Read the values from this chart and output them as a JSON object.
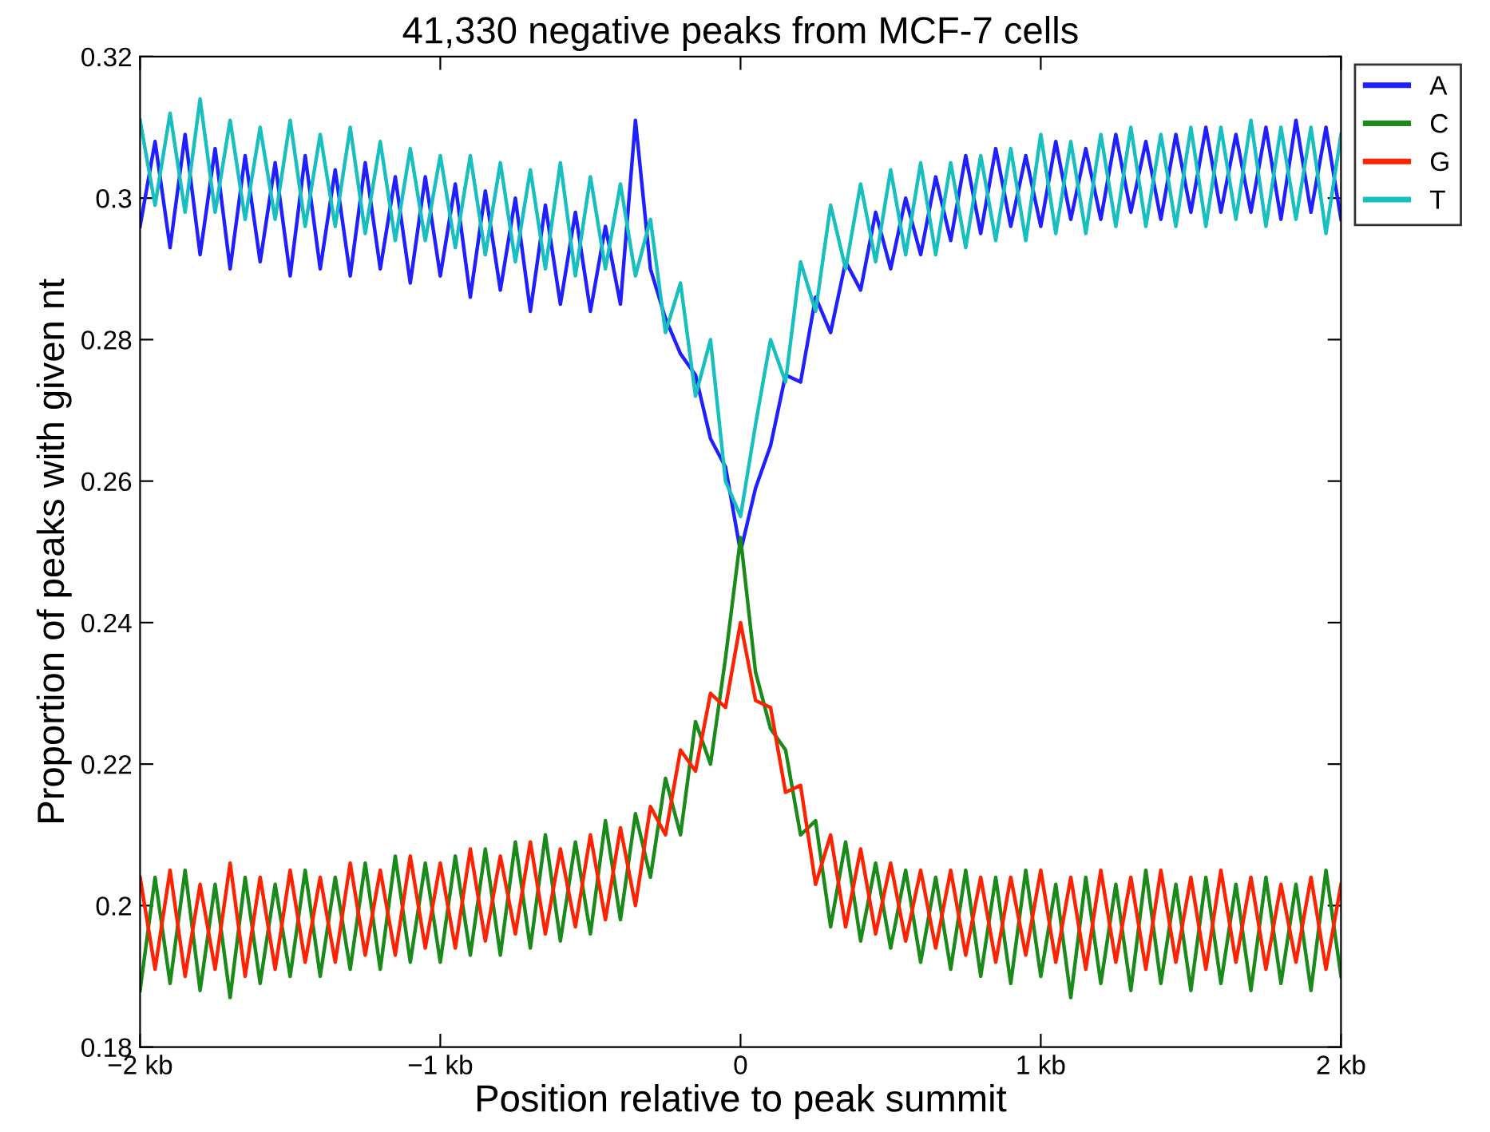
{
  "chart_data": {
    "type": "line",
    "title": "41,330 negative peaks from MCF-7 cells",
    "xlabel": "Position relative to peak summit",
    "ylabel": "Proportion of peaks with given nt",
    "x": [
      -2,
      -1.95,
      -1.9,
      -1.85,
      -1.8,
      -1.75,
      -1.7,
      -1.65,
      -1.6,
      -1.55,
      -1.5,
      -1.45,
      -1.4,
      -1.35,
      -1.3,
      -1.25,
      -1.2,
      -1.15,
      -1.1,
      -1.05,
      -1,
      -0.95,
      -0.9,
      -0.85,
      -0.8,
      -0.75,
      -0.7,
      -0.65,
      -0.6,
      -0.55,
      -0.5,
      -0.45,
      -0.4,
      -0.35,
      -0.3,
      -0.25,
      -0.2,
      -0.15,
      -0.1,
      -0.05,
      0,
      0.05,
      0.1,
      0.15,
      0.2,
      0.25,
      0.3,
      0.35,
      0.4,
      0.45,
      0.5,
      0.55,
      0.6,
      0.65,
      0.7,
      0.75,
      0.8,
      0.85,
      0.9,
      0.95,
      1,
      1.05,
      1.1,
      1.15,
      1.2,
      1.25,
      1.3,
      1.35,
      1.4,
      1.45,
      1.5,
      1.55,
      1.6,
      1.65,
      1.7,
      1.75,
      1.8,
      1.85,
      1.9,
      1.95,
      2
    ],
    "series": [
      {
        "name": "A",
        "color": "#1f1fff",
        "values": [
          0.296,
          0.308,
          0.293,
          0.309,
          0.292,
          0.307,
          0.29,
          0.306,
          0.291,
          0.305,
          0.289,
          0.306,
          0.29,
          0.304,
          0.289,
          0.305,
          0.29,
          0.303,
          0.288,
          0.303,
          0.289,
          0.302,
          0.286,
          0.301,
          0.287,
          0.3,
          0.284,
          0.299,
          0.285,
          0.298,
          0.284,
          0.296,
          0.285,
          0.311,
          0.29,
          0.283,
          0.278,
          0.275,
          0.266,
          0.262,
          0.25,
          0.259,
          0.265,
          0.275,
          0.274,
          0.286,
          0.281,
          0.291,
          0.287,
          0.298,
          0.29,
          0.3,
          0.292,
          0.303,
          0.294,
          0.306,
          0.295,
          0.307,
          0.296,
          0.306,
          0.296,
          0.308,
          0.297,
          0.307,
          0.297,
          0.309,
          0.298,
          0.308,
          0.297,
          0.309,
          0.298,
          0.31,
          0.298,
          0.309,
          0.298,
          0.31,
          0.297,
          0.311,
          0.298,
          0.31,
          0.297
        ]
      },
      {
        "name": "C",
        "color": "#1a8a1a",
        "values": [
          0.188,
          0.204,
          0.189,
          0.205,
          0.188,
          0.203,
          0.187,
          0.204,
          0.189,
          0.203,
          0.19,
          0.205,
          0.19,
          0.204,
          0.191,
          0.206,
          0.191,
          0.207,
          0.192,
          0.206,
          0.192,
          0.207,
          0.193,
          0.208,
          0.193,
          0.209,
          0.194,
          0.21,
          0.195,
          0.209,
          0.196,
          0.212,
          0.198,
          0.213,
          0.204,
          0.218,
          0.21,
          0.226,
          0.22,
          0.235,
          0.252,
          0.233,
          0.225,
          0.222,
          0.21,
          0.212,
          0.197,
          0.209,
          0.195,
          0.206,
          0.194,
          0.205,
          0.192,
          0.204,
          0.191,
          0.205,
          0.19,
          0.204,
          0.189,
          0.205,
          0.19,
          0.203,
          0.187,
          0.204,
          0.189,
          0.203,
          0.188,
          0.205,
          0.189,
          0.203,
          0.188,
          0.204,
          0.189,
          0.203,
          0.188,
          0.204,
          0.189,
          0.203,
          0.188,
          0.205,
          0.19
        ]
      },
      {
        "name": "G",
        "color": "#ff2200",
        "values": [
          0.204,
          0.191,
          0.205,
          0.19,
          0.203,
          0.191,
          0.206,
          0.19,
          0.204,
          0.191,
          0.205,
          0.192,
          0.204,
          0.192,
          0.206,
          0.193,
          0.205,
          0.193,
          0.207,
          0.194,
          0.206,
          0.194,
          0.208,
          0.195,
          0.207,
          0.196,
          0.209,
          0.196,
          0.208,
          0.197,
          0.21,
          0.198,
          0.211,
          0.2,
          0.214,
          0.21,
          0.222,
          0.219,
          0.23,
          0.228,
          0.24,
          0.229,
          0.228,
          0.216,
          0.217,
          0.203,
          0.21,
          0.197,
          0.208,
          0.196,
          0.206,
          0.195,
          0.205,
          0.194,
          0.205,
          0.193,
          0.204,
          0.192,
          0.204,
          0.193,
          0.205,
          0.192,
          0.204,
          0.191,
          0.205,
          0.192,
          0.204,
          0.191,
          0.205,
          0.192,
          0.204,
          0.191,
          0.205,
          0.192,
          0.204,
          0.191,
          0.203,
          0.192,
          0.204,
          0.191,
          0.203
        ]
      },
      {
        "name": "T",
        "color": "#17bfbf",
        "values": [
          0.311,
          0.299,
          0.312,
          0.298,
          0.314,
          0.298,
          0.311,
          0.297,
          0.31,
          0.297,
          0.311,
          0.296,
          0.309,
          0.296,
          0.31,
          0.295,
          0.308,
          0.294,
          0.307,
          0.294,
          0.306,
          0.293,
          0.306,
          0.292,
          0.305,
          0.291,
          0.304,
          0.29,
          0.305,
          0.289,
          0.303,
          0.29,
          0.302,
          0.289,
          0.297,
          0.281,
          0.288,
          0.272,
          0.28,
          0.26,
          0.255,
          0.268,
          0.28,
          0.274,
          0.291,
          0.284,
          0.299,
          0.29,
          0.302,
          0.291,
          0.304,
          0.292,
          0.305,
          0.292,
          0.305,
          0.293,
          0.306,
          0.294,
          0.307,
          0.294,
          0.309,
          0.295,
          0.308,
          0.295,
          0.309,
          0.296,
          0.31,
          0.296,
          0.309,
          0.296,
          0.31,
          0.296,
          0.31,
          0.297,
          0.311,
          0.296,
          0.31,
          0.297,
          0.31,
          0.295,
          0.309
        ]
      }
    ],
    "xlim": [
      -2,
      2
    ],
    "xticks": [
      {
        "value": -2,
        "label": "−2 kb"
      },
      {
        "value": -1,
        "label": "−1 kb"
      },
      0,
      {
        "value": 1,
        "label": "1 kb"
      },
      {
        "value": 2,
        "label": "2 kb"
      }
    ],
    "ylim": [
      0.18,
      0.32
    ],
    "yticks": [
      0.18,
      0.2,
      0.22,
      0.24,
      0.26,
      0.28,
      0.3,
      0.32
    ],
    "legend": "right",
    "grid": false,
    "marker": "none",
    "line_style": "solid"
  }
}
